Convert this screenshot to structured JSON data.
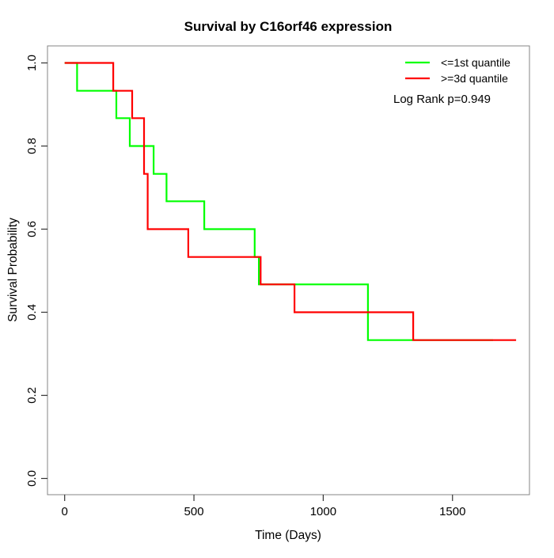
{
  "chart_data": {
    "type": "line",
    "subtype": "kaplan-meier-step-curves",
    "title": "Survival by C16orf46 expression",
    "xlabel": "Time (Days)",
    "ylabel": "Survival Probability",
    "xlim": [
      0,
      1800
    ],
    "ylim": [
      0.0,
      1.0
    ],
    "x_ticks": [
      0,
      500,
      1000,
      1500
    ],
    "y_ticks": [
      "0.0",
      "0.2",
      "0.4",
      "0.6",
      "0.8",
      "1.0"
    ],
    "grid": false,
    "legend_position": "top-right",
    "annotation": "Log Rank p=0.949",
    "series": [
      {
        "name": "<=1st quantile",
        "color": "#00ff00",
        "steps": [
          [
            0,
            1.0
          ],
          [
            48,
            0.933
          ],
          [
            200,
            0.867
          ],
          [
            252,
            0.8
          ],
          [
            344,
            0.733
          ],
          [
            394,
            0.667
          ],
          [
            540,
            0.6
          ],
          [
            735,
            0.533
          ],
          [
            751,
            0.467
          ],
          [
            1173,
            0.333
          ]
        ],
        "end_time": 1657
      },
      {
        "name": ">=3d quantile",
        "color": "#ff0000",
        "steps": [
          [
            0,
            1.0
          ],
          [
            188,
            0.933
          ],
          [
            261,
            0.867
          ],
          [
            307,
            0.733
          ],
          [
            321,
            0.6
          ],
          [
            478,
            0.533
          ],
          [
            758,
            0.467
          ],
          [
            889,
            0.4
          ],
          [
            1348,
            0.333
          ]
        ],
        "end_time": 1746
      }
    ]
  }
}
